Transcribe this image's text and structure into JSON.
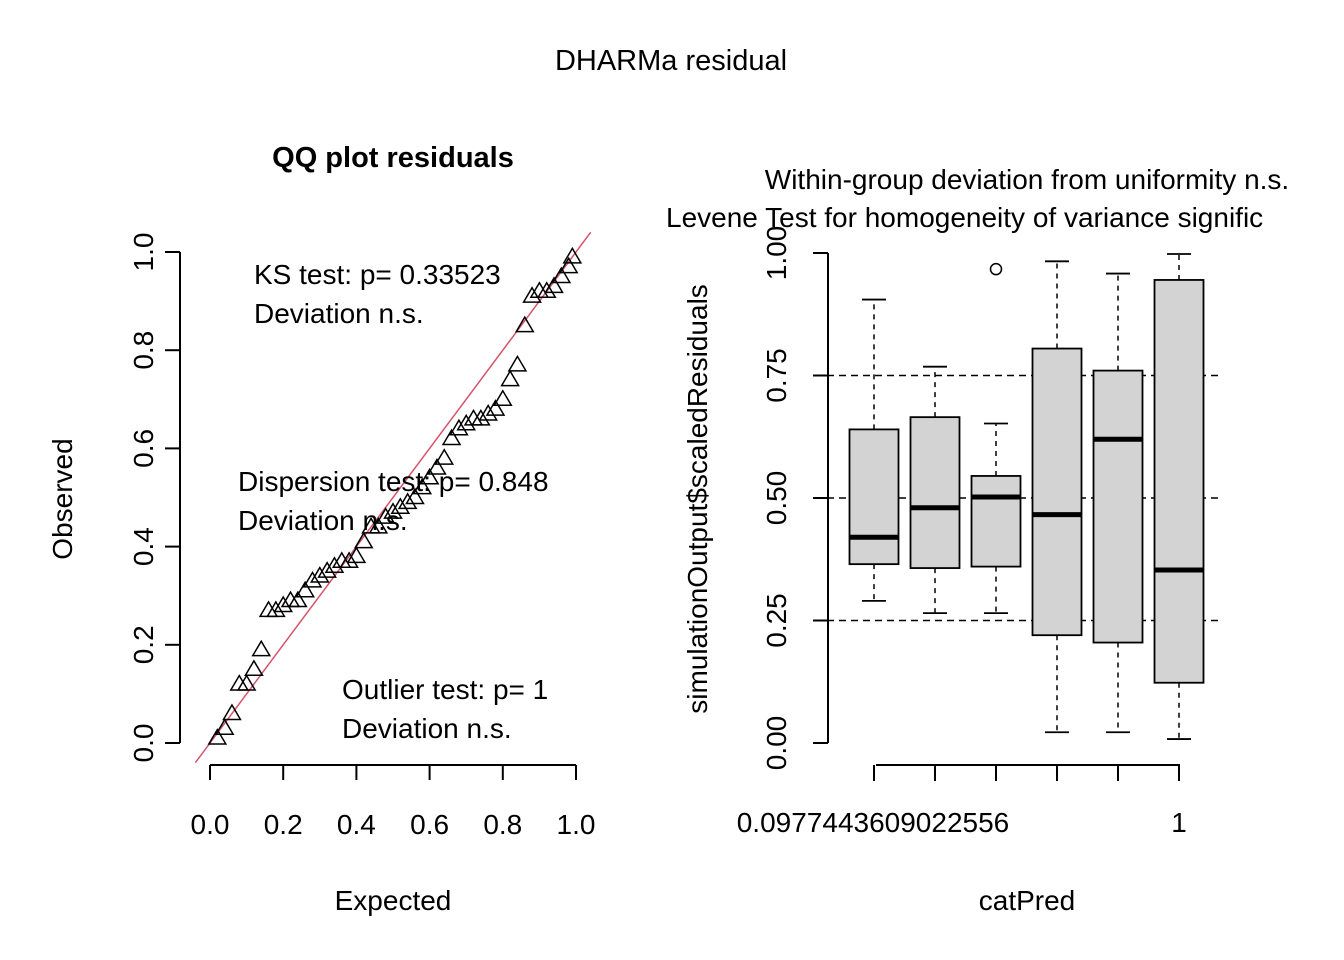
{
  "figure": {
    "title": "DHARMa residual"
  },
  "qq": {
    "title": "QQ plot residuals",
    "xlabel": "Expected",
    "ylabel": "Observed",
    "ticks": [
      "0.0",
      "0.2",
      "0.4",
      "0.6",
      "0.8",
      "1.0"
    ],
    "ks_line": "KS test: p= 0.33523",
    "ks_dev": "Deviation  n.s.",
    "disp_line": "Dispersion test: p= 0.848",
    "disp_dev": "Deviation  n.s.",
    "out_line": "Outlier test: p= 1",
    "out_dev": "Deviation  n.s.",
    "line_color": "#d6536b"
  },
  "box": {
    "subtitle1": "Within-group deviation from uniformity n.s.",
    "subtitle2": "Levene Test for homogeneity of variance signific",
    "subtitle2_color": "#ff0000",
    "xlabel": "catPred",
    "ylabel": "simulationOutput$scaledResiduals",
    "yticks": [
      "0.00",
      "0.25",
      "0.50",
      "0.75",
      "1.00"
    ],
    "xtick_first": "0.0977443609022556",
    "xtick_last": "1",
    "box_fill": "#d3d3d3"
  },
  "chart_data": [
    {
      "type": "scatter",
      "title": "QQ plot residuals",
      "xlabel": "Expected",
      "ylabel": "Observed",
      "xlim": [
        0,
        1
      ],
      "ylim": [
        0,
        1
      ],
      "marker": "triangle",
      "reference_line": "y = x",
      "x": [
        0.02,
        0.04,
        0.06,
        0.08,
        0.1,
        0.12,
        0.14,
        0.16,
        0.18,
        0.2,
        0.22,
        0.24,
        0.26,
        0.28,
        0.3,
        0.32,
        0.34,
        0.36,
        0.38,
        0.4,
        0.42,
        0.44,
        0.46,
        0.48,
        0.5,
        0.52,
        0.54,
        0.56,
        0.58,
        0.6,
        0.62,
        0.64,
        0.66,
        0.68,
        0.7,
        0.72,
        0.74,
        0.76,
        0.78,
        0.8,
        0.82,
        0.84,
        0.86,
        0.88,
        0.9,
        0.92,
        0.94,
        0.96,
        0.98,
        0.99
      ],
      "y": [
        0.01,
        0.03,
        0.06,
        0.12,
        0.12,
        0.15,
        0.19,
        0.27,
        0.27,
        0.28,
        0.29,
        0.29,
        0.31,
        0.33,
        0.34,
        0.35,
        0.36,
        0.37,
        0.37,
        0.38,
        0.41,
        0.44,
        0.44,
        0.46,
        0.47,
        0.48,
        0.49,
        0.5,
        0.52,
        0.54,
        0.56,
        0.58,
        0.62,
        0.64,
        0.65,
        0.66,
        0.66,
        0.67,
        0.68,
        0.7,
        0.74,
        0.77,
        0.85,
        0.91,
        0.92,
        0.92,
        0.93,
        0.95,
        0.97,
        0.99
      ],
      "annotations": [
        "KS test: p= 0.33523",
        "Deviation  n.s.",
        "Dispersion test: p= 0.848",
        "Deviation  n.s.",
        "Outlier test: p= 1",
        "Deviation  n.s."
      ]
    },
    {
      "type": "box",
      "xlabel": "catPred",
      "ylabel": "simulationOutput$scaledResiduals",
      "ylim": [
        0,
        1
      ],
      "reference_lines": [
        0.25,
        0.5,
        0.75
      ],
      "category_labels": [
        "0.0977443609022556",
        "1"
      ],
      "boxes": [
        {
          "min": 0.29,
          "q1": 0.365,
          "median": 0.42,
          "q3": 0.64,
          "max": 0.905,
          "outliers": []
        },
        {
          "min": 0.265,
          "q1": 0.357,
          "median": 0.48,
          "q3": 0.665,
          "max": 0.768,
          "outliers": []
        },
        {
          "min": 0.265,
          "q1": 0.36,
          "median": 0.502,
          "q3": 0.545,
          "max": 0.652,
          "outliers": [
            0.967
          ]
        },
        {
          "min": 0.022,
          "q1": 0.22,
          "median": 0.466,
          "q3": 0.805,
          "max": 0.983,
          "outliers": []
        },
        {
          "min": 0.022,
          "q1": 0.205,
          "median": 0.62,
          "q3": 0.76,
          "max": 0.958,
          "outliers": []
        },
        {
          "min": 0.008,
          "q1": 0.123,
          "median": 0.353,
          "q3": 0.945,
          "max": 0.998,
          "outliers": []
        }
      ]
    }
  ]
}
